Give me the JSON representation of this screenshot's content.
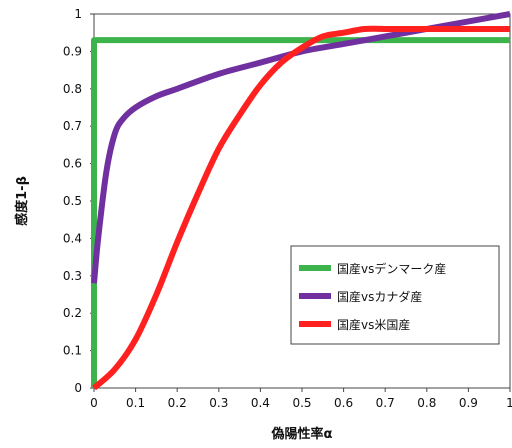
{
  "chart_data": {
    "type": "line",
    "xlabel": "偽陽性率α",
    "ylabel": "感度1-β",
    "xlim": [
      0,
      1
    ],
    "ylim": [
      0,
      1
    ],
    "x_ticks": [
      "0",
      "0.1",
      "0.2",
      "0.3",
      "0.4",
      "0.5",
      "0.6",
      "0.7",
      "0.8",
      "0.9",
      "1"
    ],
    "y_ticks": [
      "0",
      "0.1",
      "0.2",
      "0.3",
      "0.4",
      "0.5",
      "0.6",
      "0.7",
      "0.8",
      "0.9",
      "1"
    ],
    "grid": false,
    "legend_position": "lower-right",
    "series": [
      {
        "name": "国産vsデンマーク産",
        "color": "#3cb44b",
        "x": [
          0,
          0,
          1
        ],
        "y": [
          0,
          0.93,
          0.93
        ]
      },
      {
        "name": "国産vsカナダ産",
        "color": "#7030a0",
        "x": [
          0,
          0.01,
          0.03,
          0.05,
          0.07,
          0.1,
          0.15,
          0.2,
          0.3,
          0.4,
          0.5,
          0.6,
          0.7,
          0.8,
          0.9,
          1
        ],
        "y": [
          0.28,
          0.4,
          0.58,
          0.68,
          0.72,
          0.75,
          0.78,
          0.8,
          0.84,
          0.87,
          0.9,
          0.92,
          0.94,
          0.96,
          0.98,
          1
        ]
      },
      {
        "name": "国産vs米国産",
        "color": "#ff2020",
        "x": [
          0,
          0.05,
          0.1,
          0.15,
          0.2,
          0.25,
          0.3,
          0.35,
          0.4,
          0.45,
          0.5,
          0.55,
          0.6,
          0.65,
          0.7,
          0.8,
          0.9,
          1
        ],
        "y": [
          0,
          0.05,
          0.13,
          0.25,
          0.39,
          0.52,
          0.64,
          0.73,
          0.81,
          0.87,
          0.91,
          0.94,
          0.95,
          0.96,
          0.96,
          0.96,
          0.96,
          0.96
        ]
      }
    ]
  }
}
